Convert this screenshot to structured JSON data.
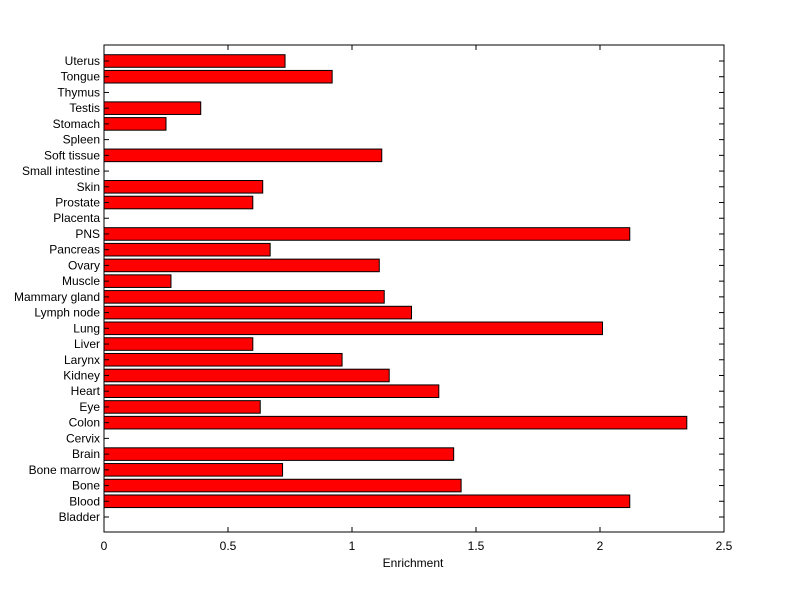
{
  "chart_data": {
    "type": "bar",
    "orientation": "horizontal",
    "title": "",
    "xlabel": "Enrichment",
    "ylabel": "",
    "xlim": [
      0,
      2.5
    ],
    "xticks": [
      "0",
      "0.5",
      "1",
      "1.5",
      "2",
      "2.5"
    ],
    "grid": false,
    "bar_color": "#ff0000",
    "bar_edge_color": "#000000",
    "categories": [
      "Bladder",
      "Blood",
      "Bone",
      "Bone marrow",
      "Brain",
      "Cervix",
      "Colon",
      "Eye",
      "Heart",
      "Kidney",
      "Larynx",
      "Liver",
      "Lung",
      "Lymph node",
      "Mammary gland",
      "Muscle",
      "Ovary",
      "Pancreas",
      "PNS",
      "Placenta",
      "Prostate",
      "Skin",
      "Small intestine",
      "Soft tissue",
      "Spleen",
      "Stomach",
      "Testis",
      "Thymus",
      "Tongue",
      "Uterus"
    ],
    "values": [
      0,
      2.12,
      1.44,
      0.72,
      1.41,
      0,
      2.35,
      0.63,
      1.35,
      1.15,
      0.96,
      0.6,
      2.01,
      1.24,
      1.13,
      0.27,
      1.11,
      0.67,
      2.12,
      0,
      0.6,
      0.64,
      0,
      1.12,
      0,
      0.25,
      0.39,
      0,
      0.92,
      0.73
    ]
  }
}
